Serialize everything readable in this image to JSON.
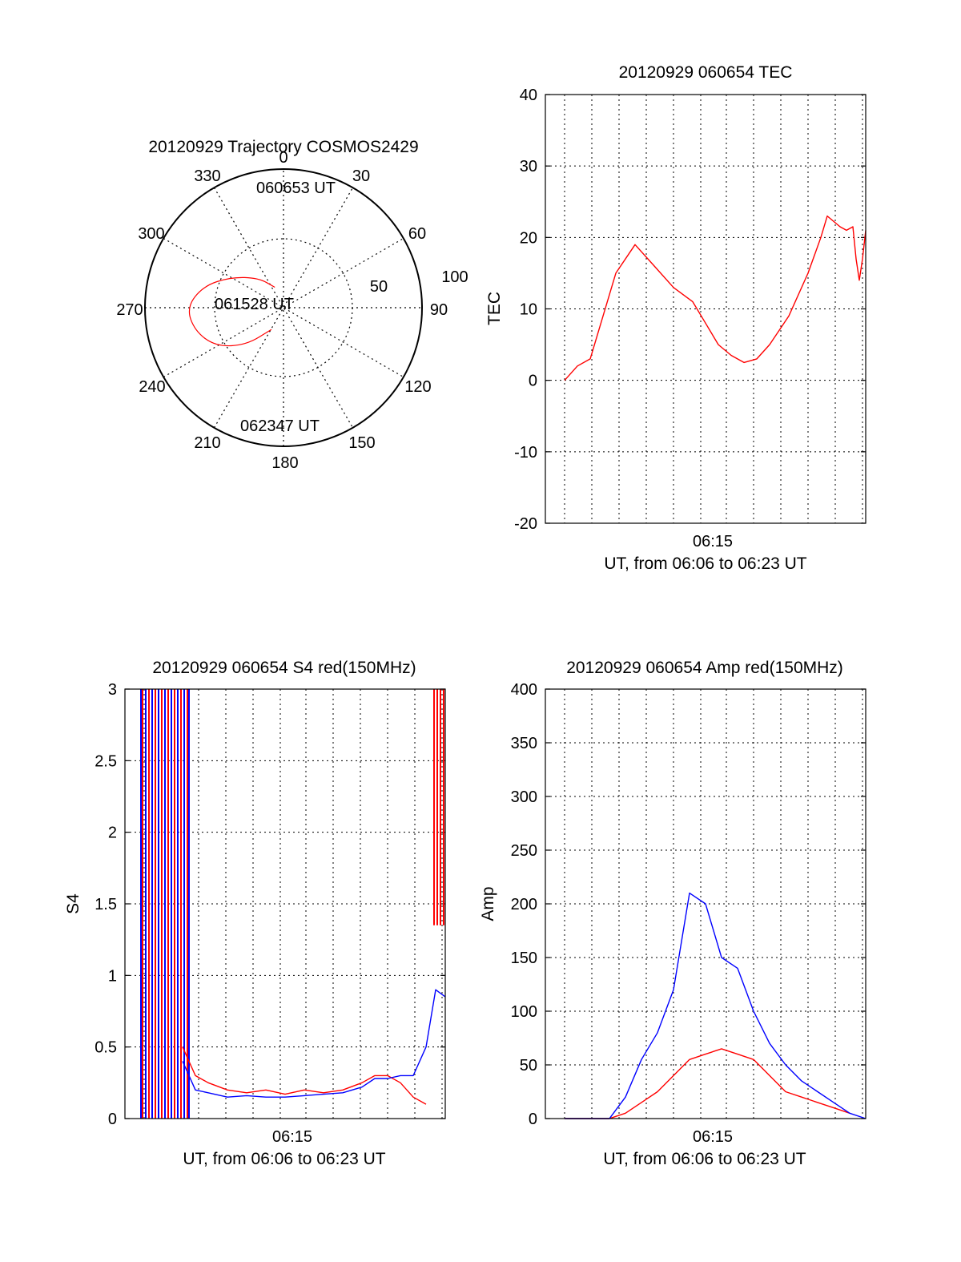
{
  "colors": {
    "red": "#ff0000",
    "blue": "#0000ff",
    "black": "#000000"
  },
  "chart_data": [
    {
      "type": "polar",
      "title": "20120929 Trajectory COSMOS2429",
      "angle_labels": [
        "0",
        "30",
        "60",
        "90",
        "120",
        "150",
        "180",
        "210",
        "240",
        "270",
        "300",
        "330"
      ],
      "radius_labels": [
        "50",
        "100"
      ],
      "annotations": [
        "060653 UT",
        "061528 UT",
        "062347 UT"
      ],
      "series": [
        {
          "color": "red",
          "points": [
            [
              337,
              16
            ],
            [
              320,
              28
            ],
            [
              300,
              44
            ],
            [
              285,
              60
            ],
            [
              270,
              70
            ],
            [
              255,
              66
            ],
            [
              240,
              56
            ],
            [
              225,
              38
            ],
            [
              209,
              18
            ]
          ]
        }
      ]
    },
    {
      "type": "line",
      "title": "20120929 060654 TEC",
      "ylabel": "TEC",
      "xlabel": "UT, from 06:06 to 06:23 UT",
      "xtick_label": "06:15",
      "ylim": [
        -20,
        40
      ],
      "yticks": [
        "-20",
        "-10",
        "0",
        "10",
        "20",
        "30",
        "40"
      ],
      "series": [
        {
          "color": "red",
          "x": [
            0.06,
            0.1,
            0.14,
            0.18,
            0.2,
            0.22,
            0.28,
            0.34,
            0.4,
            0.46,
            0.5,
            0.54,
            0.58,
            0.62,
            0.66,
            0.7,
            0.76,
            0.82,
            0.86,
            0.88,
            0.92,
            0.94,
            0.96,
            0.97,
            0.98,
            0.99,
            1.0
          ],
          "y": [
            0,
            2,
            3,
            9,
            12,
            15,
            19,
            16,
            13,
            11,
            8,
            5,
            3.5,
            2.5,
            3,
            5,
            9,
            15,
            20,
            23,
            21.5,
            21,
            21.5,
            17,
            14,
            17,
            21
          ]
        }
      ]
    },
    {
      "type": "line",
      "title": "20120929 060654 S4 red(150MHz)",
      "ylabel": "S4",
      "xlabel": "UT, from 06:06 to 06:23 UT",
      "xtick_label": "06:15",
      "ylim": [
        0,
        3
      ],
      "yticks": [
        "0",
        "0.5",
        "1",
        "1.5",
        "2",
        "2.5",
        "3"
      ],
      "series": [
        {
          "color": "red",
          "x": [
            0.18,
            0.22,
            0.26,
            0.32,
            0.38,
            0.44,
            0.5,
            0.56,
            0.62,
            0.68,
            0.74,
            0.78,
            0.82,
            0.86,
            0.9,
            0.94
          ],
          "y": [
            0.5,
            0.3,
            0.25,
            0.2,
            0.18,
            0.2,
            0.17,
            0.2,
            0.18,
            0.2,
            0.25,
            0.3,
            0.3,
            0.25,
            0.15,
            0.1
          ]
        },
        {
          "color": "blue",
          "x": [
            0.18,
            0.22,
            0.26,
            0.32,
            0.38,
            0.44,
            0.5,
            0.56,
            0.62,
            0.68,
            0.74,
            0.78,
            0.82,
            0.86,
            0.9,
            0.94,
            0.97,
            1.0
          ],
          "y": [
            0.4,
            0.2,
            0.18,
            0.15,
            0.16,
            0.15,
            0.15,
            0.16,
            0.17,
            0.18,
            0.22,
            0.28,
            0.28,
            0.3,
            0.3,
            0.5,
            0.9,
            0.85
          ]
        }
      ]
    },
    {
      "type": "line",
      "title": "20120929 060654 Amp red(150MHz)",
      "ylabel": "Amp",
      "xlabel": "UT, from 06:06 to 06:23 UT",
      "xtick_label": "06:15",
      "ylim": [
        0,
        400
      ],
      "yticks": [
        "0",
        "50",
        "100",
        "150",
        "200",
        "250",
        "300",
        "350",
        "400"
      ],
      "series": [
        {
          "color": "red",
          "x": [
            0.06,
            0.2,
            0.25,
            0.3,
            0.35,
            0.4,
            0.45,
            0.5,
            0.55,
            0.6,
            0.65,
            0.7,
            0.75,
            0.8,
            0.85,
            0.9,
            0.95
          ],
          "y": [
            0,
            0,
            5,
            15,
            25,
            40,
            55,
            60,
            65,
            60,
            55,
            40,
            25,
            20,
            15,
            10,
            5
          ]
        },
        {
          "color": "blue",
          "x": [
            0.06,
            0.2,
            0.25,
            0.3,
            0.35,
            0.4,
            0.45,
            0.5,
            0.55,
            0.6,
            0.65,
            0.7,
            0.75,
            0.8,
            0.85,
            0.9,
            0.95,
            1.0
          ],
          "y": [
            0,
            0,
            20,
            55,
            80,
            120,
            210,
            200,
            150,
            140,
            100,
            70,
            50,
            35,
            25,
            15,
            5,
            0
          ]
        }
      ]
    }
  ]
}
